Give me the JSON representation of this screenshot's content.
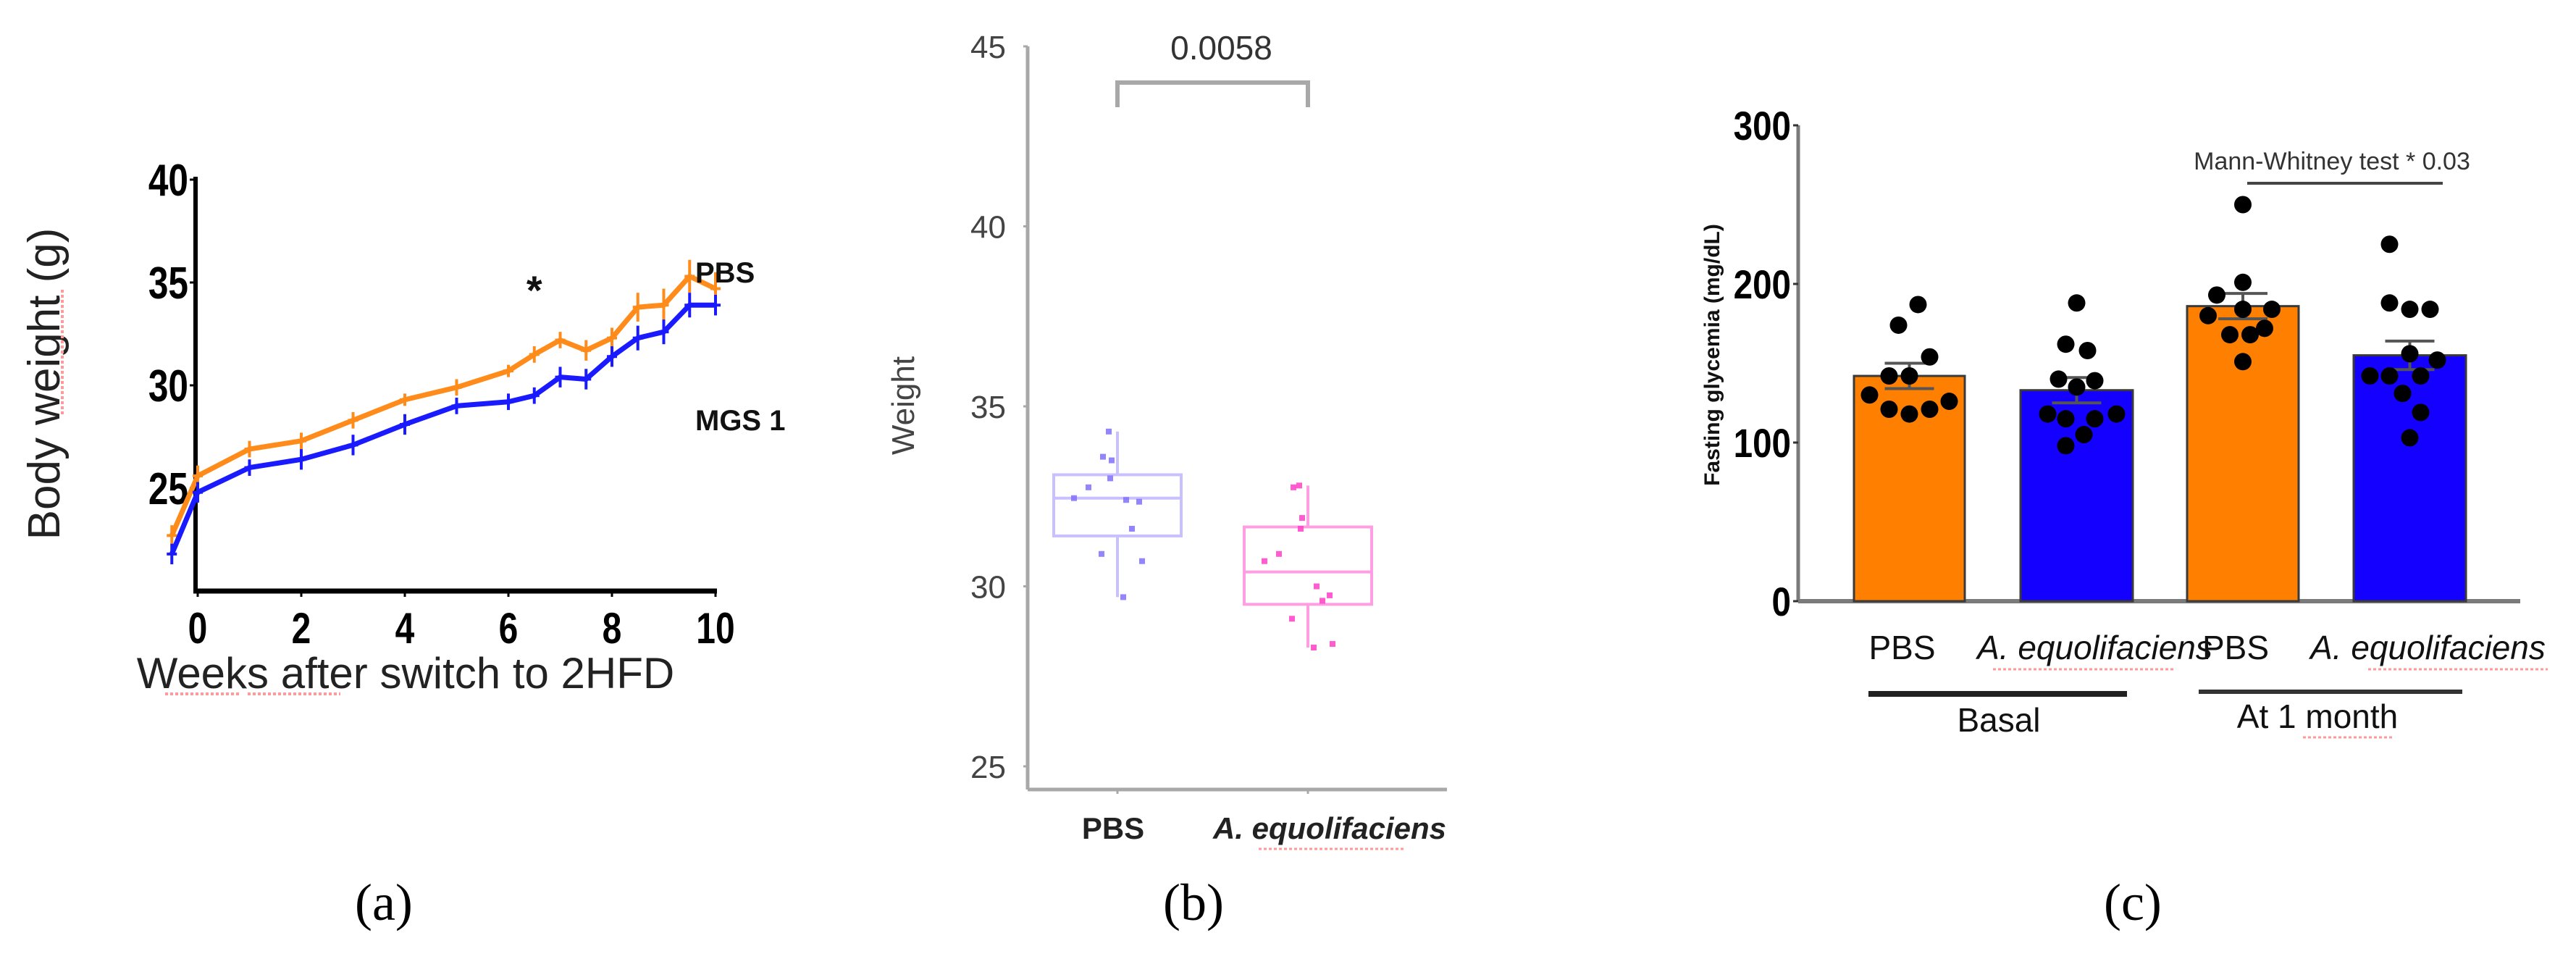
{
  "figure": {
    "captions": [
      "(a)",
      "(b)",
      "(c)"
    ]
  },
  "chart_data": [
    {
      "id": "a",
      "type": "line",
      "title": "",
      "xlabel": "Weeks after switch to 2HFD",
      "ylabel": "Body weight (g)",
      "xlim": [
        -0.5,
        10
      ],
      "ylim": [
        20,
        40
      ],
      "xticks": [
        0,
        2,
        4,
        6,
        8,
        10
      ],
      "yticks": [
        25,
        30,
        35,
        40
      ],
      "grid": false,
      "legend_position": "inline-right",
      "x": [
        -0.5,
        0,
        1,
        2,
        3,
        4,
        5,
        6,
        6.5,
        7,
        7.5,
        8,
        8.5,
        9,
        9.5,
        10
      ],
      "series": [
        {
          "name": "PBS",
          "color": "#ff8c1a",
          "values": [
            22.7,
            25.6,
            26.9,
            27.3,
            28.3,
            29.3,
            29.9,
            30.7,
            31.5,
            32.2,
            31.7,
            32.3,
            33.8,
            33.9,
            35.3,
            34.7
          ],
          "error": [
            0.5,
            0.5,
            0.4,
            0.4,
            0.4,
            0.3,
            0.4,
            0.3,
            0.4,
            0.4,
            0.5,
            0.5,
            0.7,
            0.8,
            0.8,
            0.8
          ]
        },
        {
          "name": "MGS 1",
          "color": "#1a1aff",
          "values": [
            21.8,
            24.8,
            26.0,
            26.4,
            27.1,
            28.1,
            29.0,
            29.2,
            29.5,
            30.4,
            30.3,
            31.4,
            32.3,
            32.6,
            33.9,
            33.9
          ],
          "error": [
            0.5,
            0.5,
            0.4,
            0.5,
            0.5,
            0.5,
            0.4,
            0.4,
            0.4,
            0.5,
            0.5,
            0.5,
            0.6,
            0.6,
            0.6,
            0.5
          ]
        }
      ],
      "annotations": [
        {
          "text": "*",
          "x": 6.5,
          "y": 35.0
        },
        {
          "text": "PBS",
          "x": 9.6,
          "y": 36.2
        },
        {
          "text": "MGS 1",
          "x": 9.6,
          "y": 32.4
        }
      ]
    },
    {
      "id": "b",
      "type": "box",
      "title": "",
      "xlabel": "",
      "ylabel": "Weight",
      "ylim": [
        24.4,
        45
      ],
      "yticks": [
        25,
        30,
        35,
        40,
        45
      ],
      "grid": false,
      "categories": [
        "PBS",
        "A. equolifaciens"
      ],
      "series": [
        {
          "name": "PBS",
          "box_color": "#c8c0ff",
          "point_color": "#8070ff",
          "q1": 31.4,
          "median": 32.45,
          "q3": 33.1,
          "whisker_low": 29.7,
          "whisker_high": 34.3,
          "points": [
            34.3,
            33.6,
            33.5,
            33.0,
            32.75,
            32.45,
            32.4,
            32.35,
            31.6,
            30.9,
            30.7,
            29.7
          ]
        },
        {
          "name": "A. equolifaciens",
          "box_color": "#ff9ee3",
          "point_color": "#ff40c8",
          "q1": 29.5,
          "median": 30.4,
          "q3": 31.65,
          "whisker_low": 28.3,
          "whisker_high": 32.8,
          "points": [
            32.8,
            32.75,
            31.9,
            31.6,
            30.9,
            30.7,
            30.0,
            29.75,
            29.6,
            29.1,
            28.4,
            28.3
          ]
        }
      ],
      "annotations": [
        {
          "text": "0.0058",
          "between": [
            "PBS",
            "A. equolifaciens"
          ]
        }
      ]
    },
    {
      "id": "c",
      "type": "bar",
      "title": "",
      "xlabel": "",
      "ylabel": "Fasting glycemia (mg/dL)",
      "ylim": [
        0,
        300
      ],
      "yticks": [
        0,
        100,
        200,
        300
      ],
      "grid": false,
      "categories": [
        "PBS",
        "A. equolifaciens",
        "PBS",
        "A. equolifaciens"
      ],
      "groups": [
        {
          "label": "Basal",
          "members": [
            0,
            1
          ]
        },
        {
          "label": "At 1 month",
          "members": [
            2,
            3
          ]
        }
      ],
      "values": [
        142,
        133,
        186,
        155
      ],
      "sem": [
        8,
        8,
        8,
        9
      ],
      "colors": [
        "#ff8000",
        "#1400ff",
        "#ff8000",
        "#1400ff"
      ],
      "points": [
        [
          187,
          174,
          154,
          142,
          142,
          130,
          126,
          121,
          121,
          118
        ],
        [
          188,
          162,
          158,
          140,
          139,
          135,
          118,
          118,
          115,
          115,
          105,
          98
        ],
        [
          250,
          201,
          193,
          184,
          184,
          180,
          172,
          168,
          168,
          151
        ],
        [
          225,
          188,
          184,
          184,
          156,
          152,
          142,
          142,
          142,
          131,
          119,
          103
        ]
      ],
      "annotations": [
        {
          "text": "Mann-Whitney test *  0.03",
          "between": [
            2,
            3
          ]
        }
      ]
    }
  ]
}
